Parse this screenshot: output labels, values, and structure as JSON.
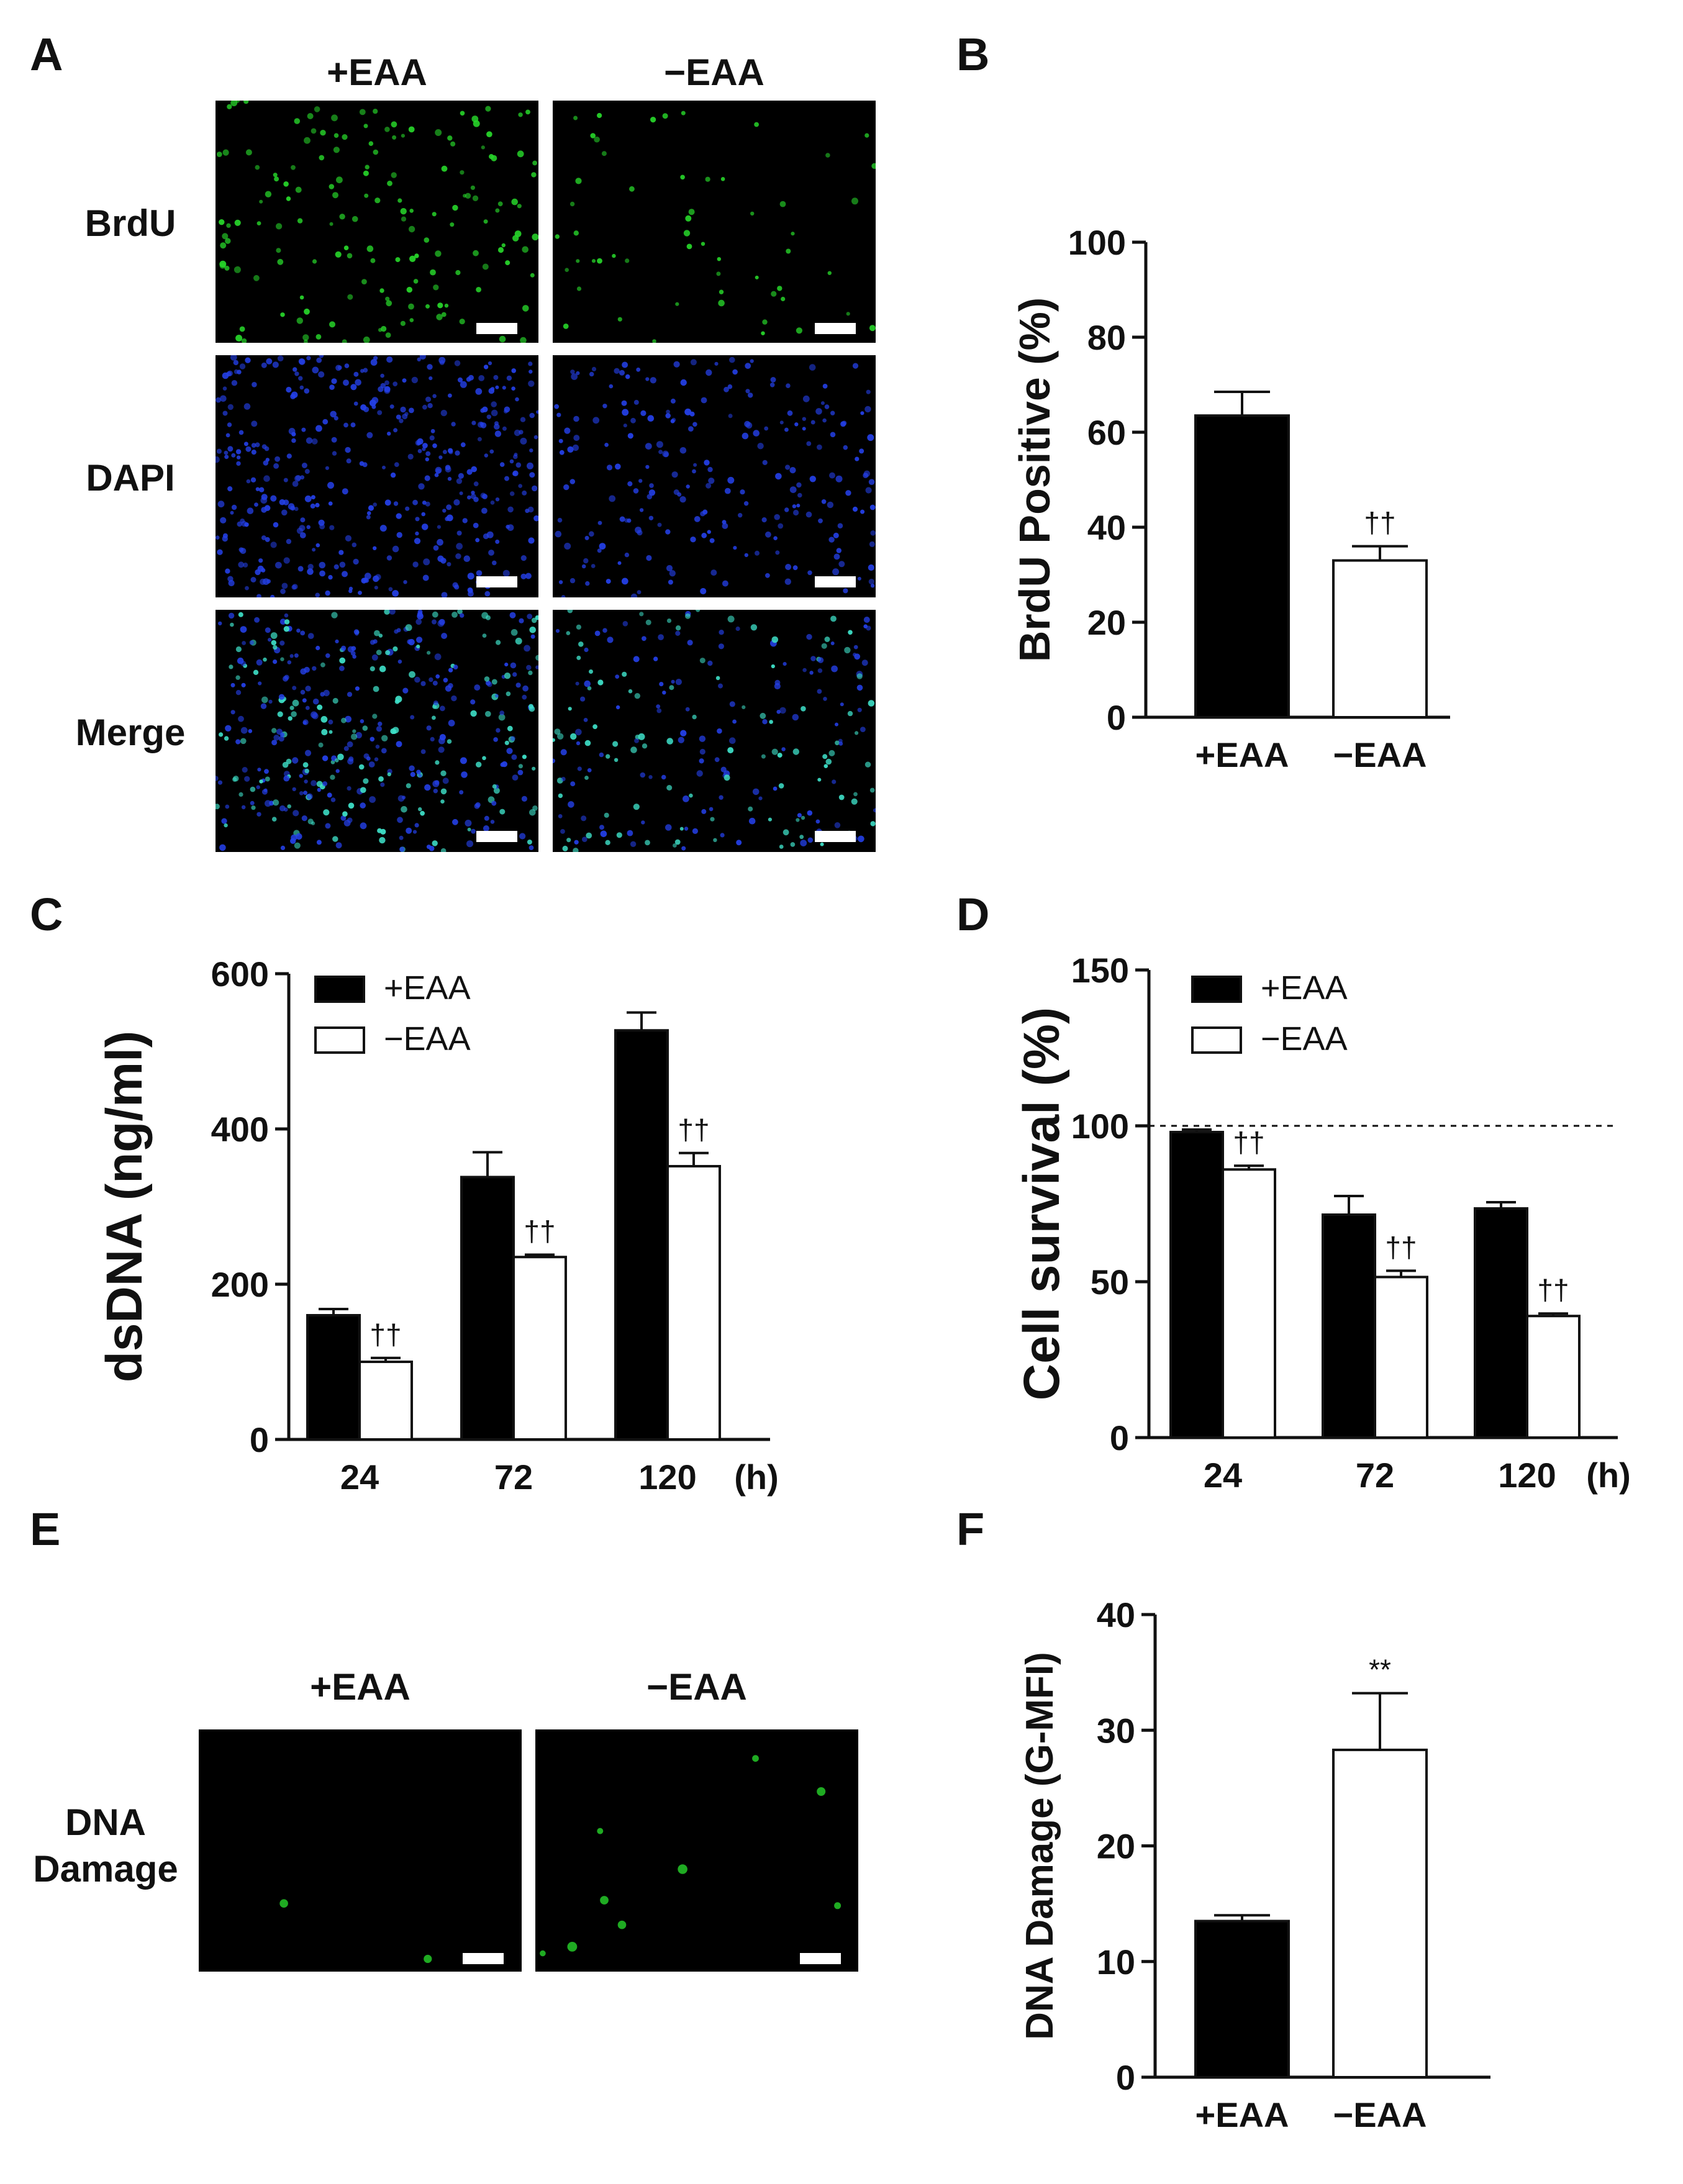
{
  "panels": {
    "A": {
      "letter": "A",
      "columns": [
        "+EAA",
        "−EAA"
      ],
      "rows": [
        "BrdU",
        "DAPI",
        "Merge"
      ],
      "colors": {
        "brdu": "#27d62a",
        "dapi": "#2440e8",
        "merge_cyan": "#3ee0c8"
      }
    },
    "B": {
      "letter": "B"
    },
    "C": {
      "letter": "C"
    },
    "D": {
      "letter": "D"
    },
    "E": {
      "letter": "E",
      "columns": [
        "+EAA",
        "−EAA"
      ],
      "row_label_line1": "DNA",
      "row_label_line2": "Damage"
    },
    "F": {
      "letter": "F"
    }
  },
  "chart_data": [
    {
      "panel": "B",
      "type": "bar",
      "categories": [
        "+EAA",
        "−EAA"
      ],
      "values": [
        63.5,
        33
      ],
      "errors": [
        5,
        3
      ],
      "fills": [
        "#000000",
        "#ffffff"
      ],
      "annotations": [
        "",
        "††"
      ],
      "ylabel": "BrdU Positive (%)",
      "ylim": [
        0,
        100
      ],
      "yticks": [
        0,
        20,
        40,
        60,
        80,
        100
      ]
    },
    {
      "panel": "C",
      "type": "bar",
      "categories": [
        "24",
        "72",
        "120"
      ],
      "x_unit": "(h)",
      "series": [
        {
          "name": "+EAA",
          "fill": "#000000",
          "values": [
            160,
            338,
            527
          ],
          "errors": [
            8,
            32,
            23
          ]
        },
        {
          "name": "−EAA",
          "fill": "#ffffff",
          "values": [
            100,
            235,
            352
          ],
          "errors": [
            5,
            3,
            17
          ],
          "annotations": [
            "††",
            "††",
            "††"
          ]
        }
      ],
      "ylabel": "dsDNA (ng/ml)",
      "ylim": [
        0,
        600
      ],
      "yticks": [
        0,
        200,
        400,
        600
      ],
      "legend": "top-left"
    },
    {
      "panel": "D",
      "type": "bar",
      "categories": [
        "24",
        "72",
        "120"
      ],
      "x_unit": "(h)",
      "series": [
        {
          "name": "+EAA",
          "fill": "#000000",
          "values": [
            98,
            71.5,
            73.5
          ],
          "errors": [
            0.8,
            6,
            2
          ]
        },
        {
          "name": "−EAA",
          "fill": "#ffffff",
          "values": [
            86,
            51.5,
            39
          ],
          "errors": [
            1.2,
            2,
            0.8
          ],
          "annotations": [
            "††",
            "††",
            "††"
          ]
        }
      ],
      "ylabel": "Cell survival (%)",
      "ylim": [
        0,
        150
      ],
      "yticks": [
        0,
        50,
        100,
        150
      ],
      "reference_line": 100,
      "legend": "top-left"
    },
    {
      "panel": "F",
      "type": "bar",
      "categories": [
        "+EAA",
        "−EAA"
      ],
      "values": [
        13.5,
        28.3
      ],
      "errors": [
        0.5,
        4.9
      ],
      "fills": [
        "#000000",
        "#ffffff"
      ],
      "annotations": [
        "",
        "**"
      ],
      "ylabel": "DNA Damage (G-MFI)",
      "ylim": [
        0,
        40
      ],
      "yticks": [
        0,
        10,
        20,
        30,
        40
      ]
    }
  ]
}
